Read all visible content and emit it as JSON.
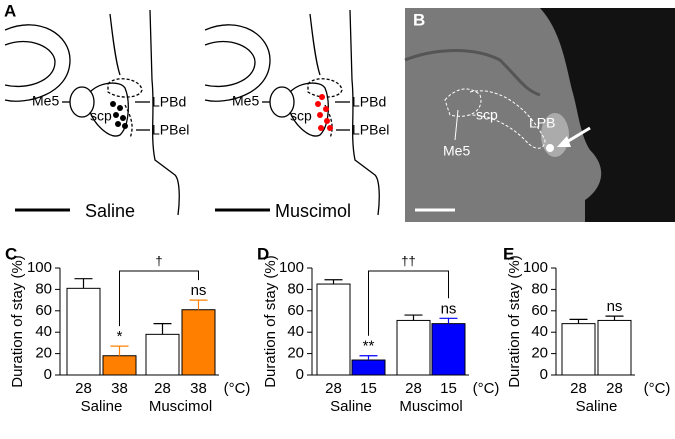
{
  "panel_a": {
    "label": "A",
    "structures": {
      "me5": "Me5",
      "scp": "scp",
      "lpbd": "LPBd",
      "lpbel": "LPBel"
    },
    "captions": [
      "Saline",
      "Muscimol"
    ]
  },
  "panel_b": {
    "label": "B",
    "structures": {
      "scp": "scp",
      "me5": "Me5",
      "lpb": "LPB"
    }
  },
  "chart_data": [
    {
      "type": "bar",
      "label": "C",
      "y_label": "Duration of stay (%)",
      "x_unit": "(°C)",
      "categories": [
        "28",
        "38",
        "28",
        "38"
      ],
      "group_labels": [
        "Saline",
        "Muscimol"
      ],
      "values": [
        81,
        18,
        38,
        61
      ],
      "errors": [
        9,
        9,
        10,
        9
      ],
      "colors": [
        "#ffffff",
        "#ff8000",
        "#ffffff",
        "#ff8000"
      ],
      "bar_marks": [
        null,
        "*",
        null,
        "ns"
      ],
      "bracket_label": "†",
      "ylim": [
        0,
        100
      ],
      "yticks": [
        0,
        20,
        40,
        60,
        80,
        100
      ]
    },
    {
      "type": "bar",
      "label": "D",
      "y_label": "Duration of stay (%)",
      "x_unit": "(°C)",
      "categories": [
        "28",
        "15",
        "28",
        "15"
      ],
      "group_labels": [
        "Saline",
        "Muscimol"
      ],
      "values": [
        85,
        14,
        51,
        48
      ],
      "errors": [
        4,
        4,
        5,
        5
      ],
      "colors": [
        "#ffffff",
        "#0000ff",
        "#ffffff",
        "#0000ff"
      ],
      "bar_marks": [
        null,
        "**",
        null,
        "ns"
      ],
      "bracket_label": "††",
      "ylim": [
        0,
        100
      ],
      "yticks": [
        0,
        20,
        40,
        60,
        80,
        100
      ]
    },
    {
      "type": "bar",
      "label": "E",
      "y_label": "Duration of stay (%)",
      "x_unit": "(°C)",
      "categories": [
        "28",
        "28"
      ],
      "group_labels": [
        "Saline"
      ],
      "values": [
        48,
        51
      ],
      "errors": [
        4,
        4
      ],
      "colors": [
        "#ffffff",
        "#ffffff"
      ],
      "bar_marks": [
        null,
        "ns"
      ],
      "ylim": [
        0,
        100
      ],
      "yticks": [
        0,
        20,
        40,
        60,
        80,
        100
      ]
    }
  ]
}
